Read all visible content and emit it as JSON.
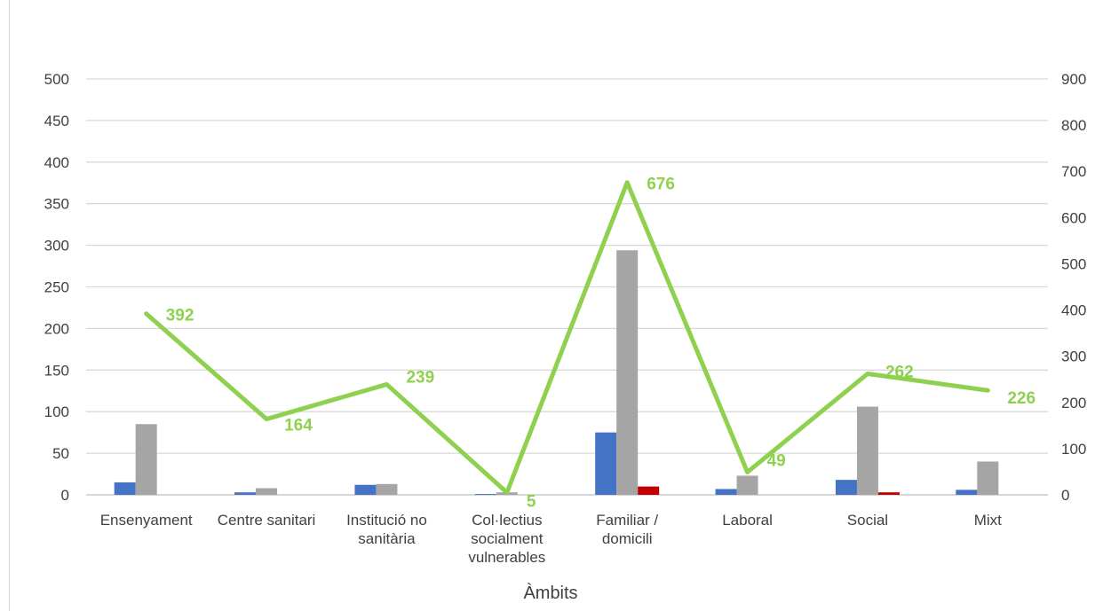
{
  "chart_data": {
    "type": "bar",
    "categories": [
      "Ensenyament",
      "Centre sanitari",
      "Institució no sanitària",
      "Col·lectius socialment vulnerables",
      "Familiar / domicili",
      "Laboral",
      "Social",
      "Mixt"
    ],
    "category_lines": [
      [
        "Ensenyament"
      ],
      [
        "Centre sanitari"
      ],
      [
        "Institució no",
        "sanitària"
      ],
      [
        "Col·lectius",
        "socialment",
        "vulnerables"
      ],
      [
        "Familiar /",
        "domicili"
      ],
      [
        "Laboral"
      ],
      [
        "Social"
      ],
      [
        "Mixt"
      ]
    ],
    "series": [
      {
        "values": [
          15,
          3,
          12,
          1,
          75,
          7,
          18,
          6
        ],
        "color": "#4472c4",
        "axis": "left",
        "kind": "bar"
      },
      {
        "values": [
          85,
          8,
          13,
          3,
          294,
          23,
          106,
          40
        ],
        "color": "#a5a5a5",
        "axis": "left",
        "kind": "bar"
      },
      {
        "values": [
          0,
          0,
          0,
          0,
          10,
          0,
          3,
          0
        ],
        "color": "#c00000",
        "axis": "left",
        "kind": "bar"
      },
      {
        "values": [
          392,
          164,
          239,
          5,
          676,
          49,
          262,
          226
        ],
        "color": "#8fd14f",
        "axis": "right",
        "kind": "line",
        "labels": [
          "392",
          "164",
          "239",
          "5",
          "676",
          "49",
          "262",
          "226"
        ]
      }
    ],
    "xlabel": "Àmbits",
    "ylim": [
      0,
      500
    ],
    "y2lim": [
      0,
      900
    ],
    "yticks": [
      "0",
      "50",
      "100",
      "150",
      "200",
      "250",
      "300",
      "350",
      "400",
      "450",
      "500"
    ],
    "y2ticks": [
      "0",
      "100",
      "200",
      "300",
      "400",
      "500",
      "600",
      "700",
      "800",
      "900"
    ],
    "grid": true,
    "legend": "none"
  }
}
